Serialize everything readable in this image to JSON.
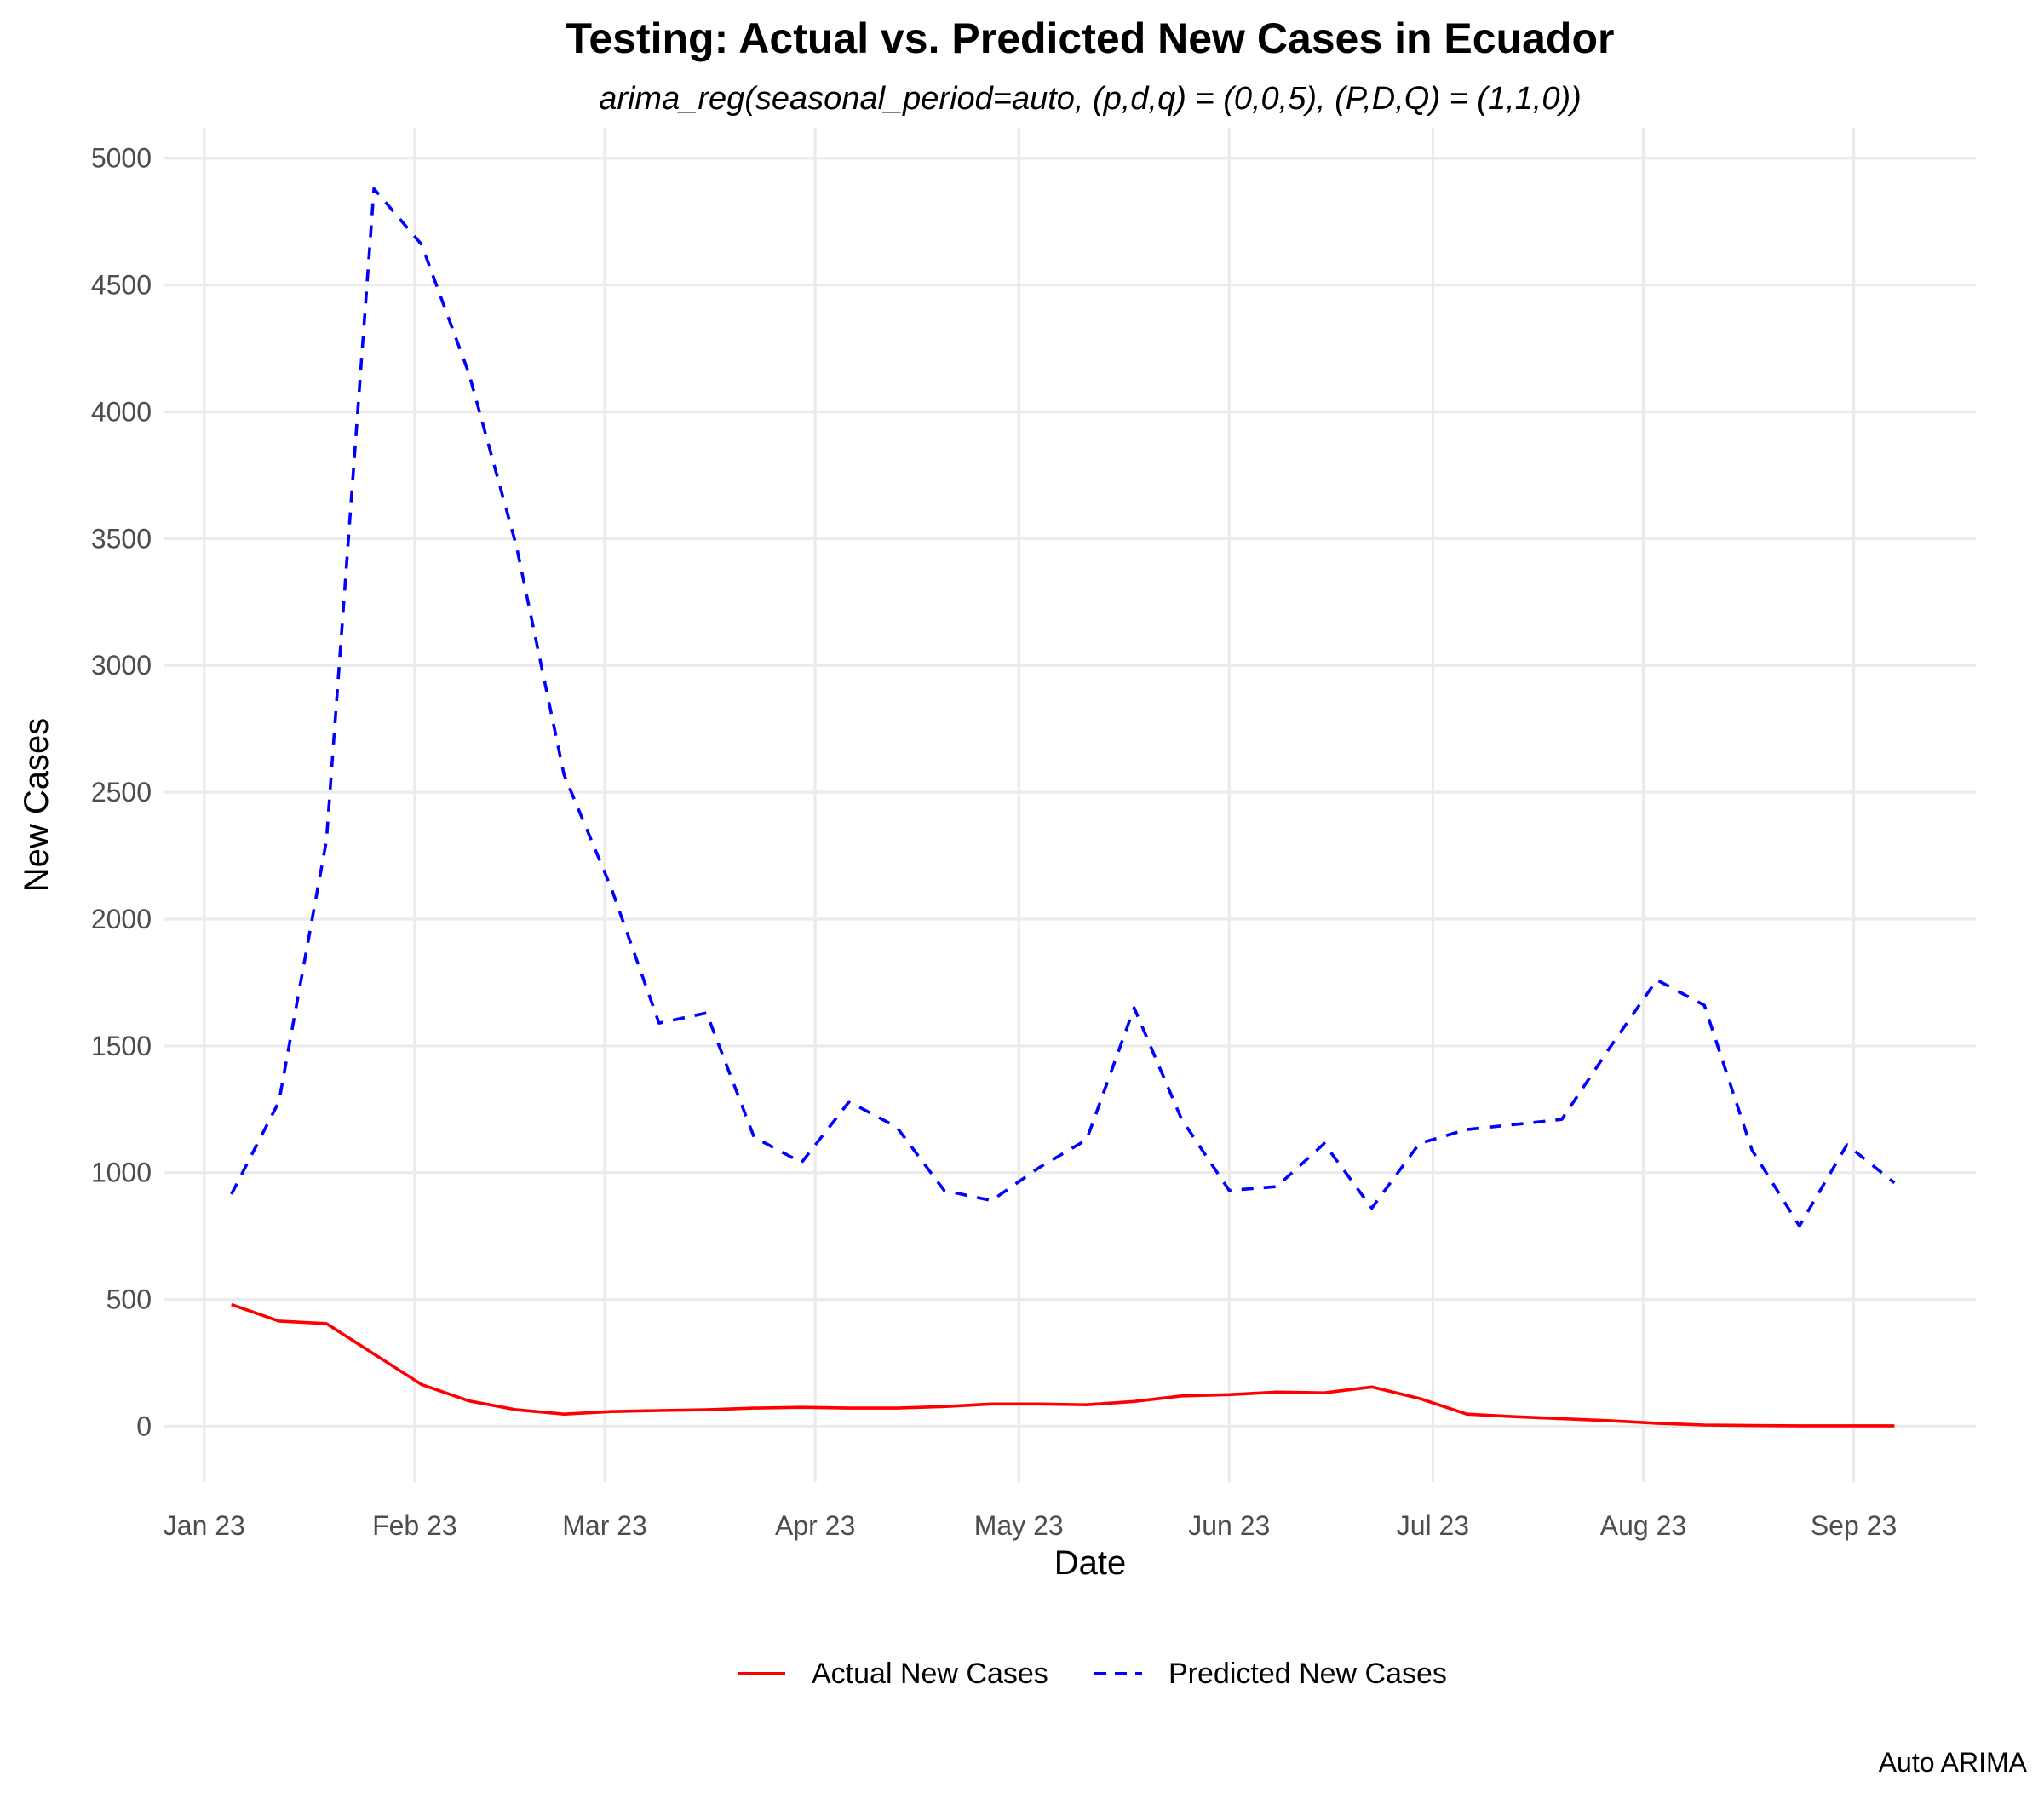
{
  "chart_data": {
    "type": "line",
    "title": "Testing: Actual vs. Predicted New Cases in Ecuador",
    "subtitle": "arima_reg(seasonal_period=auto, (p,d,q) = (0,0,5), (P,D,Q) = (1,1,0))",
    "xlabel": "Date",
    "ylabel": "New Cases",
    "caption": "Auto ARIMA",
    "x_ticks": [
      {
        "date": "2023-01-01",
        "label": "Jan 23"
      },
      {
        "date": "2023-02-01",
        "label": "Feb 23"
      },
      {
        "date": "2023-03-01",
        "label": "Mar 23"
      },
      {
        "date": "2023-04-01",
        "label": "Apr 23"
      },
      {
        "date": "2023-05-01",
        "label": "May 23"
      },
      {
        "date": "2023-06-01",
        "label": "Jun 23"
      },
      {
        "date": "2023-07-01",
        "label": "Jul 23"
      },
      {
        "date": "2023-08-01",
        "label": "Aug 23"
      },
      {
        "date": "2023-09-01",
        "label": "Sep 23"
      }
    ],
    "xlim": [
      "2022-12-26",
      "2023-09-19"
    ],
    "ylim": [
      -220,
      5120
    ],
    "y_ticks": [
      0,
      500,
      1000,
      1500,
      2000,
      2500,
      3000,
      3500,
      4000,
      4500,
      5000
    ],
    "grid": true,
    "legend_position": "bottom",
    "x": [
      "2023-01-05",
      "2023-01-12",
      "2023-01-19",
      "2023-01-26",
      "2023-02-02",
      "2023-02-09",
      "2023-02-16",
      "2023-02-23",
      "2023-03-02",
      "2023-03-09",
      "2023-03-16",
      "2023-03-23",
      "2023-03-30",
      "2023-04-06",
      "2023-04-13",
      "2023-04-20",
      "2023-04-27",
      "2023-05-04",
      "2023-05-11",
      "2023-05-18",
      "2023-05-25",
      "2023-06-01",
      "2023-06-08",
      "2023-06-15",
      "2023-06-22",
      "2023-06-29",
      "2023-07-06",
      "2023-07-13",
      "2023-07-20",
      "2023-07-27",
      "2023-08-03",
      "2023-08-10",
      "2023-08-17",
      "2023-08-24",
      "2023-08-31",
      "2023-09-07"
    ],
    "series": [
      {
        "name": "Actual New Cases",
        "color": "#FF0000",
        "dash": "solid",
        "values": [
          480,
          415,
          405,
          285,
          165,
          100,
          65,
          48,
          58,
          62,
          65,
          72,
          75,
          72,
          72,
          78,
          88,
          88,
          85,
          98,
          120,
          125,
          135,
          132,
          155,
          110,
          48,
          38,
          30,
          22,
          12,
          5,
          3,
          2,
          2,
          2
        ]
      },
      {
        "name": "Predicted New Cases",
        "color": "#0000FF",
        "dash": "dashed",
        "values": [
          915,
          1280,
          2310,
          4880,
          4660,
          4150,
          3470,
          2570,
          2120,
          1590,
          1630,
          1140,
          1040,
          1280,
          1180,
          930,
          890,
          1020,
          1130,
          1650,
          1210,
          930,
          945,
          1115,
          860,
          1115,
          1170,
          1190,
          1210,
          1490,
          1760,
          1660,
          1090,
          790,
          1110,
          960
        ]
      }
    ]
  }
}
